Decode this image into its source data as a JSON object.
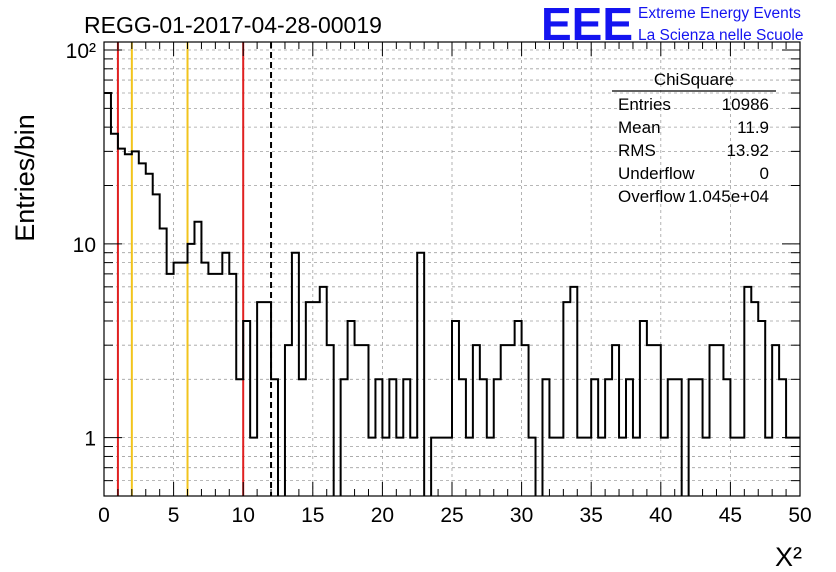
{
  "chart_data": {
    "type": "bar",
    "title": "REGG-01-2017-04-28-00019",
    "xlabel": "X²",
    "ylabel": "Entries/bin",
    "xlim": [
      0,
      50
    ],
    "ylim": [
      0.5,
      110
    ],
    "y_scale": "log",
    "grid": true,
    "x_ticks": [
      "0",
      "5",
      "10",
      "15",
      "20",
      "25",
      "30",
      "35",
      "40",
      "45",
      "50"
    ],
    "y_ticks": [
      "1",
      "10",
      "10²"
    ],
    "bin_width": 0.5,
    "values": [
      60,
      37,
      31,
      29,
      30,
      26,
      23,
      18,
      12,
      7,
      8,
      8,
      10,
      13,
      8,
      7,
      7,
      9,
      7,
      2,
      4,
      1,
      5,
      5,
      2,
      0,
      3,
      9,
      2,
      5,
      5,
      6,
      3,
      0,
      2,
      4,
      3,
      3,
      1,
      2,
      1,
      2,
      1,
      2,
      1,
      9,
      0,
      1,
      1,
      1,
      4,
      2,
      1,
      3,
      2,
      1,
      2,
      3,
      3,
      4,
      3,
      1,
      0,
      2,
      1,
      1,
      5,
      6,
      1,
      1,
      2,
      1,
      2,
      3,
      1,
      2,
      1,
      4,
      3,
      3,
      1,
      2,
      2,
      0,
      2,
      2,
      1,
      3,
      3,
      2,
      1,
      1,
      6,
      5,
      4,
      1,
      3,
      2,
      1,
      1
    ],
    "vertical_lines": [
      {
        "x": 1,
        "color": "#e02020",
        "style": "solid"
      },
      {
        "x": 2,
        "color": "#f2c41c",
        "style": "solid"
      },
      {
        "x": 6,
        "color": "#f2c41c",
        "style": "solid"
      },
      {
        "x": 10,
        "color": "#e02020",
        "style": "solid"
      },
      {
        "x": 12,
        "color": "#000000",
        "style": "dashed"
      }
    ],
    "stats_box": {
      "name": "ChiSquare",
      "rows": [
        {
          "label": "Entries",
          "value": "10986"
        },
        {
          "label": "Mean",
          "value": "11.9"
        },
        {
          "label": "RMS",
          "value": "13.92"
        },
        {
          "label": "Underflow",
          "value": "0"
        },
        {
          "label": "Overflow",
          "value": "1.045e+04"
        }
      ]
    }
  },
  "logo": {
    "text": "EEE",
    "line1": "Extreme Energy Events",
    "line2": "La Scienza nelle Scuole",
    "color": "#1414f0"
  }
}
